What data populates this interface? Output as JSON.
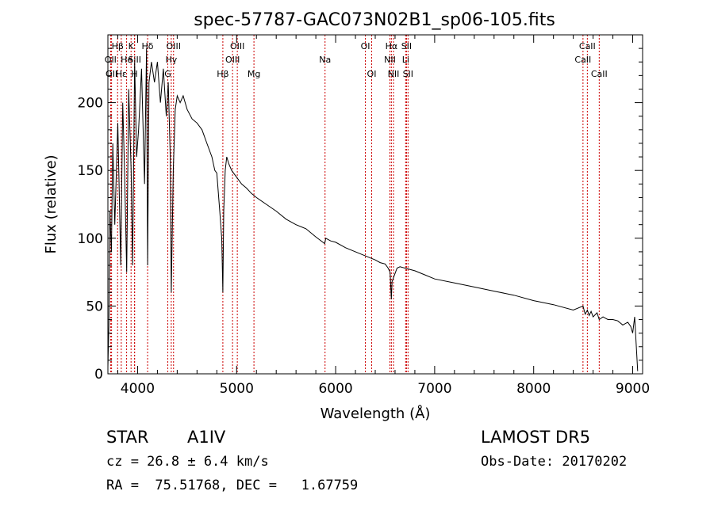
{
  "chart_data": {
    "type": "line",
    "title": "spec-57787-GAC073N02B1_sp06-105.fits",
    "xlabel": "Wavelength (Å)",
    "ylabel": "Flux (relative)",
    "xlim": [
      3700,
      9100
    ],
    "ylim": [
      0,
      250
    ],
    "x_ticks": [
      4000,
      5000,
      6000,
      7000,
      8000,
      9000
    ],
    "y_ticks": [
      0,
      50,
      100,
      150,
      200
    ],
    "grid": false,
    "line_color": "#000000",
    "marker_color": "#cc0000",
    "series": [
      {
        "x": [
          3700,
          3710,
          3720,
          3735,
          3750,
          3770,
          3800,
          3830,
          3850,
          3870,
          3890,
          3910,
          3935,
          3950,
          3970,
          3990,
          4010,
          4040,
          4070,
          4090,
          4101,
          4115,
          4140,
          4170,
          4200,
          4230,
          4260,
          4290,
          4310,
          4330,
          4340,
          4360,
          4380,
          4400,
          4430,
          4460,
          4500,
          4550,
          4600,
          4650,
          4700,
          4750,
          4780,
          4800,
          4830,
          4850,
          4861,
          4870,
          4885,
          4900,
          4920,
          4950,
          5000,
          5050,
          5100,
          5150,
          5200,
          5300,
          5400,
          5500,
          5600,
          5700,
          5800,
          5890,
          5900,
          5950,
          6000,
          6100,
          6200,
          6300,
          6400,
          6450,
          6500,
          6530,
          6550,
          6563,
          6570,
          6590,
          6620,
          6650,
          6700,
          6800,
          6900,
          7000,
          7200,
          7400,
          7600,
          7800,
          8000,
          8200,
          8400,
          8498,
          8520,
          8542,
          8560,
          8580,
          8600,
          8640,
          8662,
          8700,
          8750,
          8800,
          8850,
          8900,
          8950,
          8980,
          9000,
          9020,
          9050
        ],
        "y": [
          5,
          35,
          120,
          90,
          170,
          110,
          185,
          80,
          200,
          145,
          75,
          210,
          150,
          80,
          230,
          160,
          180,
          225,
          140,
          240,
          80,
          215,
          230,
          215,
          230,
          200,
          225,
          190,
          215,
          160,
          60,
          150,
          195,
          205,
          200,
          205,
          195,
          188,
          185,
          180,
          170,
          160,
          150,
          148,
          120,
          100,
          60,
          120,
          150,
          160,
          155,
          150,
          145,
          140,
          137,
          133,
          130,
          125,
          120,
          114,
          110,
          107,
          101,
          96,
          100,
          98,
          97,
          93,
          90,
          87,
          84,
          82,
          81,
          78,
          75,
          55,
          68,
          72,
          78,
          79,
          78,
          76,
          73,
          70,
          67,
          64,
          61,
          58,
          54,
          51,
          47,
          50,
          44,
          47,
          43,
          46,
          42,
          45,
          40,
          42,
          40,
          40,
          39,
          36,
          38,
          35,
          30,
          42,
          2
        ]
      }
    ],
    "markers": [
      {
        "label": "Hβ",
        "wl": 3798,
        "row": 1
      },
      {
        "label": "K",
        "wl": 3934,
        "row": 1
      },
      {
        "label": "Hδ",
        "wl": 4101,
        "row": 1
      },
      {
        "label": "OIII",
        "wl": 4363,
        "row": 1
      },
      {
        "label": "OIII",
        "wl": 5007,
        "row": 1
      },
      {
        "label": "OI",
        "wl": 6300,
        "row": 1
      },
      {
        "label": "Hα",
        "wl": 6563,
        "row": 1
      },
      {
        "label": "SII",
        "wl": 6716,
        "row": 1
      },
      {
        "label": "CaII",
        "wl": 8542,
        "row": 1
      },
      {
        "label": "OII",
        "wl": 3727,
        "row": 2
      },
      {
        "label": "He",
        "wl": 3889,
        "row": 2
      },
      {
        "label": "SiII",
        "wl": 3970,
        "row": 2
      },
      {
        "label": "Hγ",
        "wl": 4340,
        "row": 2
      },
      {
        "label": "OIII",
        "wl": 4959,
        "row": 2
      },
      {
        "label": "Na",
        "wl": 5893,
        "row": 2
      },
      {
        "label": "NII",
        "wl": 6548,
        "row": 2
      },
      {
        "label": "Li",
        "wl": 6707,
        "row": 2
      },
      {
        "label": "CaII",
        "wl": 8498,
        "row": 2
      },
      {
        "label": "OII",
        "wl": 3737,
        "row": 3
      },
      {
        "label": "Hε",
        "wl": 3835,
        "row": 3
      },
      {
        "label": "H",
        "wl": 3969,
        "row": 3
      },
      {
        "label": "G",
        "wl": 4305,
        "row": 3
      },
      {
        "label": "Hβ",
        "wl": 4861,
        "row": 3
      },
      {
        "label": "Mg",
        "wl": 5175,
        "row": 3
      },
      {
        "label": "OI",
        "wl": 6364,
        "row": 3
      },
      {
        "label": "NII",
        "wl": 6584,
        "row": 3
      },
      {
        "label": "SII",
        "wl": 6731,
        "row": 3
      },
      {
        "label": "CaII",
        "wl": 8662,
        "row": 3
      }
    ]
  },
  "info": {
    "object_type": "STAR",
    "spectral_class": "A1IV",
    "survey": "LAMOST DR5",
    "redshift": "cz = 26.8 ± 6.4 km/s",
    "obs_date": "Obs-Date: 20170202",
    "coords": "RA =  75.51768, DEC =   1.67759"
  }
}
